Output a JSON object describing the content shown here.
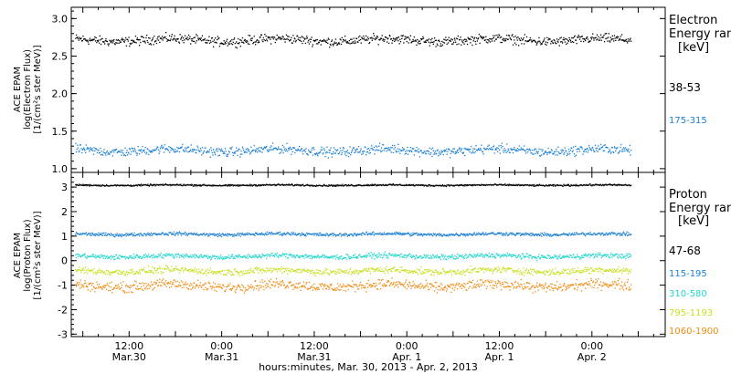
{
  "x_axis": {
    "time_ticks": [
      {
        "t": 12,
        "label": "12:00",
        "date": "Mar.30"
      },
      {
        "t": 24,
        "label": "0:00",
        "date": "Mar.31"
      },
      {
        "t": 36,
        "label": "12:00",
        "date": "Mar.31"
      },
      {
        "t": 48,
        "label": "0:00",
        "date": "Apr. 1"
      },
      {
        "t": 60,
        "label": "12:00",
        "date": "Apr. 1"
      },
      {
        "t": 72,
        "label": "0:00",
        "date": "Apr. 2"
      }
    ],
    "caption": "hours:minutes, Mar. 30, 2013 - Apr.  2, 2013"
  },
  "chart_data": [
    {
      "type": "scatter",
      "ylabel": [
        "ACE EPAM",
        "log(Electron Flux)",
        "[1/(cm²s ster MeV)]"
      ],
      "ylim": [
        0.95,
        3.15
      ],
      "yticks": [
        1.0,
        1.5,
        2.0,
        2.5,
        3.0
      ],
      "ytick_labels": [
        "1.0",
        "1.5",
        "2.0",
        "2.5",
        "3.0"
      ],
      "xlim_hours": [
        4.5,
        81.5
      ],
      "legend": {
        "title": [
          "Electron",
          "Energy ran",
          "[keV]"
        ],
        "placement": "right"
      },
      "series": [
        {
          "name": "38-53",
          "color": "#000000",
          "x_range_hours": [
            5,
            77
          ],
          "mean": 2.72,
          "spread": 0.09
        },
        {
          "name": "175-315",
          "color": "#1a7fd4",
          "x_range_hours": [
            5,
            77
          ],
          "mean": 1.25,
          "spread": 0.09
        }
      ]
    },
    {
      "type": "scatter",
      "ylabel": [
        "ACE EPAM",
        "log(Proton Flux)",
        "[1/(cm²s ster MeV)]"
      ],
      "ylim": [
        -3.1,
        3.6
      ],
      "yticks": [
        -3,
        -2,
        -1,
        0,
        1,
        2,
        3
      ],
      "ytick_labels": [
        "-3",
        "-2",
        "-1",
        "0",
        "1",
        "2",
        "3"
      ],
      "xlim_hours": [
        4.5,
        81.5
      ],
      "legend": {
        "title": [
          "Proton",
          "Energy ran",
          "[keV]"
        ],
        "placement": "right"
      },
      "series": [
        {
          "name": "47-68",
          "color": "#000000",
          "x_range_hours": [
            5,
            77
          ],
          "mean": 3.1,
          "spread": 0.05
        },
        {
          "name": "115-195",
          "color": "#1a7fd4",
          "x_range_hours": [
            5,
            77
          ],
          "mean": 1.1,
          "spread": 0.1
        },
        {
          "name": "310-580",
          "color": "#22d6cc",
          "x_range_hours": [
            5,
            77
          ],
          "mean": 0.2,
          "spread": 0.15
        },
        {
          "name": "795-1193",
          "color": "#c8e020",
          "x_range_hours": [
            5,
            77
          ],
          "mean": -0.4,
          "spread": 0.2
        },
        {
          "name": "1060-1900",
          "color": "#f08a10",
          "x_range_hours": [
            5,
            77
          ],
          "mean": -1.0,
          "spread": 0.3
        }
      ]
    }
  ]
}
